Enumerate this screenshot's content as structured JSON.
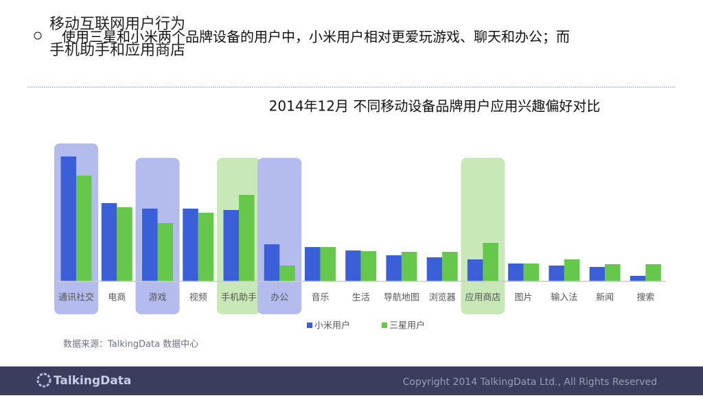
{
  "header": {
    "section": "移动互联网用户行为",
    "bullet": "使用三星和小米两个品牌设备的用户中，小米用户相对更爱玩游戏、聊天和办公；而",
    "bullet_continued": "手机助手和应用商店"
  },
  "chart_data": {
    "type": "bar",
    "title": "2014年12月 不同移动设备品牌用户应用兴趣偏好对比",
    "categories": [
      "通讯社交",
      "电商",
      "游戏",
      "视频",
      "手机助手",
      "办公",
      "音乐",
      "生活",
      "导航地图",
      "浏览器",
      "应用商店",
      "图片",
      "输入法",
      "新闻",
      "搜索"
    ],
    "series": [
      {
        "name": "小米用户",
        "color": "#3a5fd9",
        "values": [
          182,
          114,
          106,
          106,
          104,
          54,
          50,
          45,
          38,
          35,
          32,
          26,
          23,
          21,
          8
        ]
      },
      {
        "name": "三星用户",
        "color": "#66c84a",
        "values": [
          154,
          108,
          85,
          100,
          126,
          23,
          50,
          44,
          43,
          43,
          56,
          26,
          32,
          25,
          25
        ]
      }
    ],
    "ylim": [
      0,
      200
    ],
    "highlights": [
      "#b3bcec",
      null,
      "#b3bcec",
      null,
      "#c8e8b8",
      "#b3bcec",
      null,
      null,
      null,
      null,
      "#c8e8b8",
      null,
      null,
      null,
      null
    ]
  },
  "source": "数据来源：TalkingData 数据中心",
  "footer": {
    "logo": "TalkingData",
    "copyright": "Copyright 2014 TalkingData Ltd., All Rights Reserved"
  }
}
